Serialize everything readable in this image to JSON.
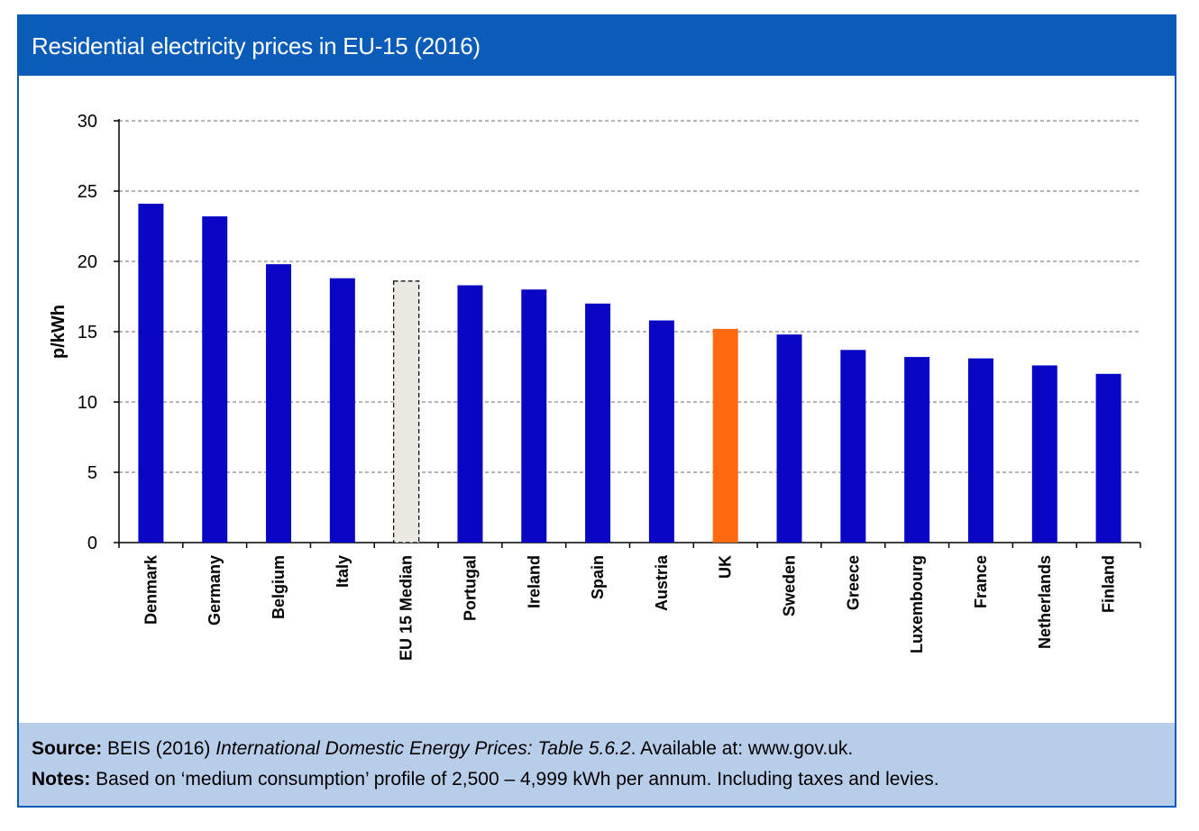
{
  "colors": {
    "header_bg": "#0b5cb8",
    "bar_default": "#0a07c4",
    "bar_highlight": "#ff6a10",
    "bar_median_fill": "#ebe8df",
    "footer_bg": "#b8cdea"
  },
  "chart_data": {
    "type": "bar",
    "title": "Residential electricity prices in EU-15 (2016)",
    "xlabel": "",
    "ylabel": "p/kWh",
    "ylim": [
      0,
      30
    ],
    "yticks": [
      0,
      5,
      10,
      15,
      20,
      25,
      30
    ],
    "grid": true,
    "categories": [
      "Denmark",
      "Germany",
      "Belgium",
      "Italy",
      "EU 15 Median",
      "Portugal",
      "Ireland",
      "Spain",
      "Austria",
      "UK",
      "Sweden",
      "Greece",
      "Luxembourg",
      "France",
      "Netherlands",
      "Finland"
    ],
    "values": [
      24.1,
      23.2,
      19.8,
      18.8,
      18.6,
      18.3,
      18.0,
      17.0,
      15.8,
      15.2,
      14.8,
      13.7,
      13.2,
      13.1,
      12.6,
      12.0
    ],
    "bar_styles": [
      "default",
      "default",
      "default",
      "default",
      "median",
      "default",
      "default",
      "default",
      "default",
      "highlight",
      "default",
      "default",
      "default",
      "default",
      "default",
      "default"
    ]
  },
  "footer": {
    "source_label": "Source:",
    "source_text_1": " BEIS (2016) ",
    "source_title": "International Domestic Energy Prices: Table 5.6.2",
    "source_text_2": ". Available at: www.gov.uk.",
    "notes_label": "Notes:",
    "notes_text": " Based on ‘medium consumption’ profile of 2,500 – 4,999 kWh per annum. Including taxes and levies."
  }
}
